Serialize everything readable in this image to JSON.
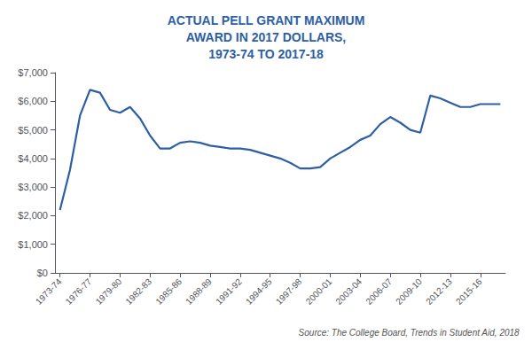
{
  "chart_data": {
    "type": "line",
    "title": "ACTUAL PELL GRANT MAXIMUM\nAWARD IN 2017 DOLLARS,\n1973-74 TO 2017-18",
    "source": "Source: The College Board, Trends in Student Aid, 2018",
    "color": "#2E5FA3",
    "x": [
      1973,
      1974,
      1975,
      1976,
      1977,
      1978,
      1979,
      1980,
      1981,
      1982,
      1983,
      1984,
      1985,
      1986,
      1987,
      1988,
      1989,
      1990,
      1991,
      1992,
      1993,
      1994,
      1995,
      1996,
      1997,
      1998,
      1999,
      2000,
      2001,
      2002,
      2003,
      2004,
      2005,
      2006,
      2007,
      2008,
      2009,
      2010,
      2011,
      2012,
      2013,
      2014,
      2015,
      2016,
      2017
    ],
    "values": [
      2200,
      3600,
      5500,
      6400,
      6300,
      5700,
      5600,
      5800,
      5400,
      4800,
      4350,
      4350,
      4550,
      4600,
      4550,
      4450,
      4400,
      4350,
      4350,
      4300,
      4200,
      4100,
      4000,
      3850,
      3650,
      3650,
      3700,
      4000,
      4200,
      4400,
      4650,
      4800,
      5200,
      5450,
      5250,
      5000,
      4900,
      6200,
      6100,
      5950,
      5800,
      5800,
      5900,
      5900,
      5900
    ],
    "xlim": [
      1972.5,
      2017.5
    ],
    "xticks": [
      {
        "value": 1973,
        "label": "1973-74"
      },
      {
        "value": 1976,
        "label": "1976-77"
      },
      {
        "value": 1979,
        "label": "1979-80"
      },
      {
        "value": 1982,
        "label": "1982-83"
      },
      {
        "value": 1985,
        "label": "1985-86"
      },
      {
        "value": 1988,
        "label": "1988-89"
      },
      {
        "value": 1991,
        "label": "1991-92"
      },
      {
        "value": 1994,
        "label": "1994-95"
      },
      {
        "value": 1997,
        "label": "1997-98"
      },
      {
        "value": 2000,
        "label": "2000-01"
      },
      {
        "value": 2003,
        "label": "2003-04"
      },
      {
        "value": 2006,
        "label": "2006-07"
      },
      {
        "value": 2009,
        "label": "2009-10"
      },
      {
        "value": 2012,
        "label": "2012-13"
      },
      {
        "value": 2015,
        "label": "2015-16"
      }
    ],
    "ylim": [
      0,
      7000
    ],
    "yticks": [
      {
        "value": 0,
        "label": "$0"
      },
      {
        "value": 1000,
        "label": "$1,000"
      },
      {
        "value": 2000,
        "label": "$2,000"
      },
      {
        "value": 3000,
        "label": "$3,000"
      },
      {
        "value": 4000,
        "label": "$4,000"
      },
      {
        "value": 5000,
        "label": "$5,000"
      },
      {
        "value": 6000,
        "label": "$6,000"
      },
      {
        "value": 7000,
        "label": "$7,000"
      }
    ],
    "grid": false
  }
}
